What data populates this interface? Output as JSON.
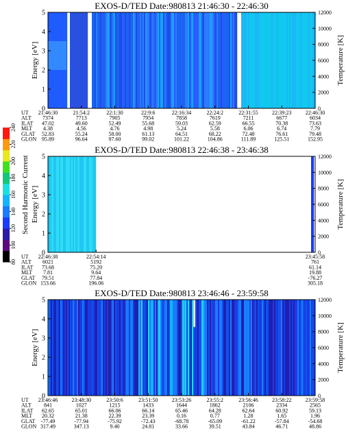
{
  "colorbar": {
    "label": "Second Harmonic Current",
    "lim": [
      80,
      240
    ],
    "ticks": [
      80,
      100,
      120,
      140,
      160,
      180,
      200,
      220,
      240
    ],
    "colors": [
      "#000000",
      "#5a0a7a",
      "#2a1aa8",
      "#1a3cff",
      "#1a7cff",
      "#14b4ff",
      "#18e0e0",
      "#10c878",
      "#40e020",
      "#e8e81a",
      "#ff9a10",
      "#ff1a10"
    ]
  },
  "panels": [
    {
      "title": "EXOS-D/TED   Date:980813   21:46:30 - 22:46:30",
      "ylabel": "Energy [eV]",
      "y2label": "Temperature [K]",
      "ylim": [
        0,
        5
      ],
      "yticks": [
        0,
        1,
        2,
        3,
        4,
        5
      ],
      "y2lim": [
        0,
        12000
      ],
      "y2ticks": [
        0,
        2000,
        4000,
        6000,
        8000,
        10000,
        12000
      ],
      "rows": [
        "UT",
        "ALT",
        "ILAT",
        "MLT",
        "GLAT",
        "GLON"
      ],
      "columns": [
        [
          "21:46:30",
          "7374",
          "47.02",
          "4.38",
          "52.83",
          "95.89"
        ],
        [
          "21:54:2",
          "7713",
          "49.60",
          "4.56",
          "55.24",
          "96.64"
        ],
        [
          "22:1:30",
          "7905",
          "52.49",
          "4.76",
          "58.00",
          "97.60"
        ],
        [
          "22:9:6",
          "7954",
          "55.68",
          "4.98",
          "61.13",
          "99.02"
        ],
        [
          "22:16:34",
          "7858",
          "59.03",
          "5.24",
          "64.51",
          "101.22"
        ],
        [
          "22:24:2",
          "7619",
          "62.59",
          "5.58",
          "68.22",
          "104.86"
        ],
        [
          "22:31:55",
          "7211",
          "66.55",
          "6.06",
          "72.48",
          "111.89"
        ],
        [
          "22:39:23",
          "6677",
          "70.38",
          "6.74",
          "76.61",
          "125.51"
        ],
        [
          "22:46:30",
          "6034",
          "73.63",
          "7.79",
          "79.48",
          "152.95"
        ]
      ]
    },
    {
      "title": "EXOS-D/TED   Date:980813   22:46:38 - 23:46:38",
      "ylabel": "Energy [eV]",
      "y2label": "Temperature [K]",
      "ylim": [
        0,
        5
      ],
      "yticks": [
        0,
        1,
        2,
        3,
        4,
        5
      ],
      "y2lim": [
        0,
        12000
      ],
      "y2ticks": [
        0,
        2000,
        4000,
        6000,
        8000,
        10000,
        12000
      ],
      "rows": [
        "UT",
        "ALT",
        "ILAT",
        "MLT",
        "GLAT",
        "GLON"
      ],
      "columns": [
        [
          "22:46:38",
          "6021",
          "73.68",
          "7.81",
          "79.51",
          "153.66"
        ],
        [
          "22:54:14",
          "5192",
          "75.20",
          "9.64",
          "77.84",
          "196.06"
        ],
        [
          "23:45:58",
          "761",
          "61.14",
          "19.88",
          "-76.27",
          "305.18"
        ]
      ]
    },
    {
      "title": "EXOS-D/TED   Date:980813   23:46:46 - 23:59:58",
      "ylabel": "Energy [eV]",
      "y2label": "Temperature [K]",
      "ylim": [
        0,
        5
      ],
      "yticks": [
        0,
        1,
        2,
        3,
        4,
        5
      ],
      "y2lim": [
        0,
        12000
      ],
      "y2ticks": [
        0,
        2000,
        4000,
        6000,
        8000,
        10000,
        12000
      ],
      "rows": [
        "UT",
        "ALT",
        "ILAT",
        "MLT",
        "GLAT",
        "GLON"
      ],
      "columns": [
        [
          "23:46:46",
          "841",
          "62.65",
          "20.32",
          "-77.49",
          "317.49"
        ],
        [
          "23:48:30",
          "1027",
          "65.01",
          "21.38",
          "-77.94",
          "347.13"
        ],
        [
          "23:50:6",
          "1215",
          "66.06",
          "22.39",
          "-75.92",
          "9.40"
        ],
        [
          "23:51:50",
          "1433",
          "66.14",
          "23.39",
          "-72.43",
          "24.81"
        ],
        [
          "23:53:26",
          "1644",
          "65.46",
          "0.16",
          "-68.78",
          "33.66"
        ],
        [
          "23:55:2",
          "1862",
          "64.28",
          "0.77",
          "-65.09",
          "39.51"
        ],
        [
          "23:56:46",
          "2106",
          "62.64",
          "1.28",
          "-61.22",
          "43.84"
        ],
        [
          "23:58:22",
          "2334",
          "60.92",
          "1.65",
          "-57.84",
          "46.71"
        ],
        [
          "23:59:58",
          "2565",
          "59.13",
          "1.96",
          "-54.68",
          "48.86"
        ]
      ]
    }
  ]
}
